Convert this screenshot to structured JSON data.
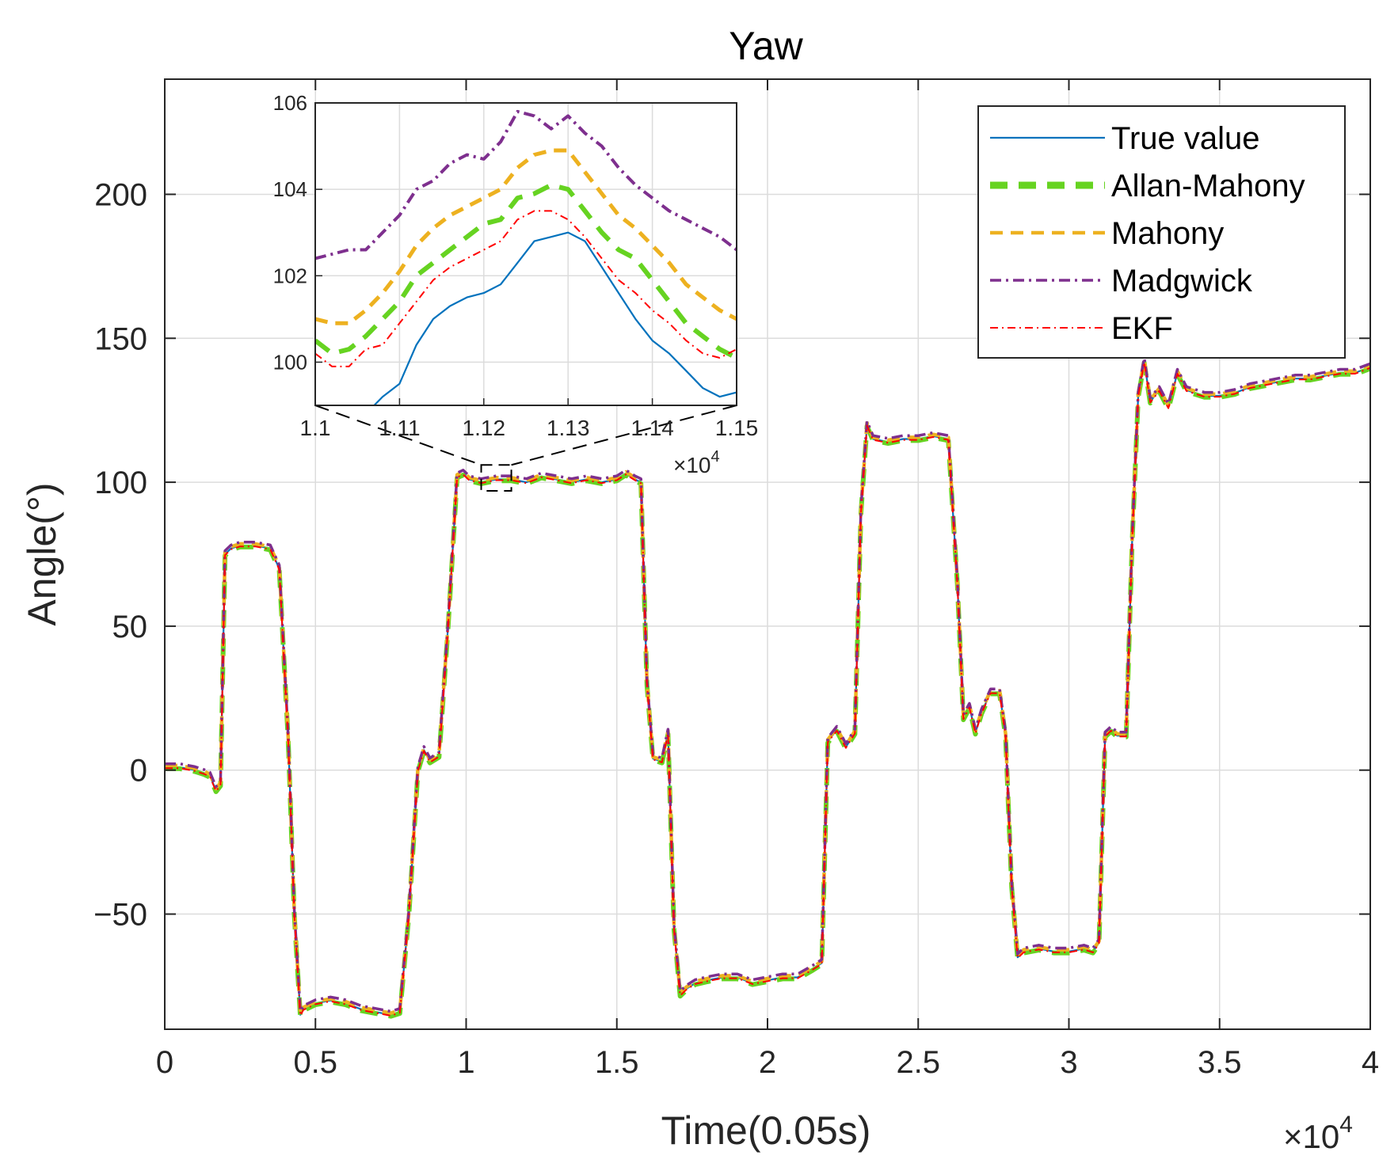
{
  "chart_data": [
    {
      "type": "line",
      "title": "Yaw",
      "xlabel": "Time(0.05s)",
      "ylabel": "Angle(°)",
      "x_exponent_label": "×10",
      "x_exponent_power": "4",
      "xlim": [
        0,
        40000
      ],
      "ylim": [
        -90,
        240
      ],
      "grid": true,
      "legend_position": "top-right",
      "x_ticks": [
        0,
        5000,
        10000,
        15000,
        20000,
        25000,
        30000,
        35000,
        40000
      ],
      "x_tick_labels": [
        "0",
        "0.5",
        "1",
        "1.5",
        "2",
        "2.5",
        "3",
        "3.5",
        "4"
      ],
      "y_ticks": [
        -50,
        0,
        50,
        100,
        150,
        200
      ],
      "y_tick_labels": [
        "−50",
        "0",
        "50",
        "100",
        "150",
        "200"
      ],
      "series": [
        {
          "name": "True value",
          "color": "#0072BD",
          "style": "solid"
        },
        {
          "name": "Allan-Mahony",
          "color": "#66D321",
          "style": "dash-thick"
        },
        {
          "name": "Mahony",
          "color": "#EDB120",
          "style": "dash"
        },
        {
          "name": "Madgwick",
          "color": "#7E2F8E",
          "style": "dashdot"
        },
        {
          "name": "EKF",
          "color": "#FF0000",
          "style": "dashdot-thin"
        }
      ],
      "true_value_path": {
        "x": [
          0,
          500,
          1000,
          1300,
          1500,
          1700,
          1850,
          2000,
          2200,
          2500,
          3000,
          3500,
          3800,
          4100,
          4300,
          4500,
          4600,
          5000,
          5500,
          6000,
          6500,
          7000,
          7500,
          7800,
          8100,
          8400,
          8600,
          8800,
          9100,
          9400,
          9700,
          9900,
          10100,
          10500,
          11000,
          11500,
          12000,
          12500,
          13000,
          13500,
          14000,
          14500,
          15000,
          15300,
          15600,
          15800,
          16000,
          16200,
          16500,
          16700,
          16900,
          17100,
          17300,
          17600,
          18000,
          18500,
          19000,
          19500,
          20000,
          20500,
          21000,
          21500,
          21800,
          22000,
          22300,
          22600,
          22900,
          23100,
          23300,
          23500,
          24000,
          24500,
          25000,
          25500,
          26000,
          26300,
          26500,
          26700,
          26900,
          27100,
          27400,
          27700,
          27900,
          28100,
          28300,
          28500,
          29000,
          29500,
          30000,
          30500,
          30800,
          31000,
          31200,
          31400,
          31600,
          31900,
          32100,
          32300,
          32500,
          32700,
          33000,
          33300,
          33600,
          33900,
          34200,
          34500,
          35000,
          35500,
          36000,
          36500,
          37000,
          37500,
          38000,
          38500,
          39000,
          39500,
          40000
        ],
        "y": [
          1,
          1,
          0,
          -1,
          -2,
          -7,
          -5,
          75,
          77,
          78,
          78,
          77,
          70,
          10,
          -50,
          -85,
          -83,
          -81,
          -80,
          -81,
          -83,
          -84,
          -85,
          -84,
          -50,
          0,
          7,
          3,
          5,
          50,
          102,
          103,
          101,
          100,
          101,
          101,
          100,
          102,
          101,
          100,
          101,
          100,
          101,
          103,
          101,
          100,
          30,
          4,
          3,
          13,
          -55,
          -78,
          -76,
          -74,
          -73,
          -72,
          -72,
          -74,
          -73,
          -72,
          -72,
          -69,
          -67,
          10,
          14,
          8,
          13,
          90,
          120,
          115,
          114,
          115,
          115,
          116,
          115,
          65,
          18,
          22,
          13,
          20,
          27,
          27,
          12,
          -40,
          -65,
          -63,
          -62,
          -63,
          -63,
          -62,
          -63,
          -60,
          12,
          14,
          12,
          12,
          80,
          130,
          142,
          128,
          132,
          126,
          138,
          132,
          131,
          130,
          130,
          131,
          133,
          134,
          135,
          136,
          136,
          137,
          138,
          138,
          140
        ]
      },
      "series_offsets": [
        0,
        -0.5,
        0.6,
        1.2,
        -0.3
      ],
      "zoom_box": {
        "x": [
          10500,
          11500
        ],
        "y": [
          97,
          106
        ]
      }
    },
    {
      "type": "line",
      "role": "inset",
      "xlim": [
        11000,
        11500
      ],
      "ylim": [
        99,
        106
      ],
      "grid": true,
      "x_exponent_label": "×10",
      "x_exponent_power": "4",
      "x_ticks": [
        11000,
        11100,
        11200,
        11300,
        11400,
        11500
      ],
      "x_tick_labels": [
        "1.1",
        "1.11",
        "1.12",
        "1.13",
        "1.14",
        "1.15"
      ],
      "y_ticks": [
        100,
        102,
        104,
        106
      ],
      "y_tick_labels": [
        "100",
        "102",
        "104",
        "106"
      ],
      "x": [
        11000,
        11020,
        11040,
        11060,
        11080,
        11100,
        11120,
        11140,
        11160,
        11180,
        11200,
        11220,
        11240,
        11260,
        11280,
        11300,
        11320,
        11340,
        11360,
        11380,
        11400,
        11420,
        11440,
        11460,
        11480,
        11500
      ],
      "series": [
        {
          "name": "True value",
          "values": [
            98.9,
            98.7,
            98.8,
            98.8,
            99.2,
            99.5,
            100.4,
            101.0,
            101.3,
            101.5,
            101.6,
            101.8,
            102.3,
            102.8,
            102.9,
            103.0,
            102.8,
            102.2,
            101.6,
            101.0,
            100.5,
            100.2,
            99.8,
            99.4,
            99.2,
            99.3
          ]
        },
        {
          "name": "Allan-Mahony",
          "values": [
            100.5,
            100.2,
            100.3,
            100.6,
            101.0,
            101.4,
            102.0,
            102.3,
            102.6,
            102.9,
            103.2,
            103.3,
            103.8,
            103.9,
            104.1,
            104.0,
            103.5,
            103.0,
            102.6,
            102.4,
            101.9,
            101.4,
            100.9,
            100.6,
            100.3,
            100.1
          ]
        },
        {
          "name": "Mahony",
          "values": [
            101.0,
            100.9,
            100.9,
            101.2,
            101.6,
            102.1,
            102.7,
            103.1,
            103.4,
            103.6,
            103.8,
            104.0,
            104.5,
            104.8,
            104.9,
            104.9,
            104.4,
            103.9,
            103.4,
            103.1,
            102.7,
            102.3,
            101.8,
            101.5,
            101.2,
            101.0
          ]
        },
        {
          "name": "Madgwick",
          "values": [
            102.4,
            102.5,
            102.6,
            102.6,
            103.0,
            103.4,
            104.0,
            104.2,
            104.6,
            104.8,
            104.7,
            105.1,
            105.8,
            105.7,
            105.4,
            105.7,
            105.3,
            105.0,
            104.5,
            104.1,
            103.8,
            103.5,
            103.3,
            103.1,
            102.9,
            102.6
          ]
        },
        {
          "name": "EKF",
          "values": [
            100.2,
            99.9,
            99.9,
            100.3,
            100.4,
            100.9,
            101.4,
            101.9,
            102.2,
            102.4,
            102.6,
            102.8,
            103.3,
            103.5,
            103.5,
            103.3,
            102.9,
            102.4,
            101.9,
            101.6,
            101.2,
            100.9,
            100.5,
            100.2,
            100.1,
            100.3
          ]
        }
      ]
    }
  ]
}
